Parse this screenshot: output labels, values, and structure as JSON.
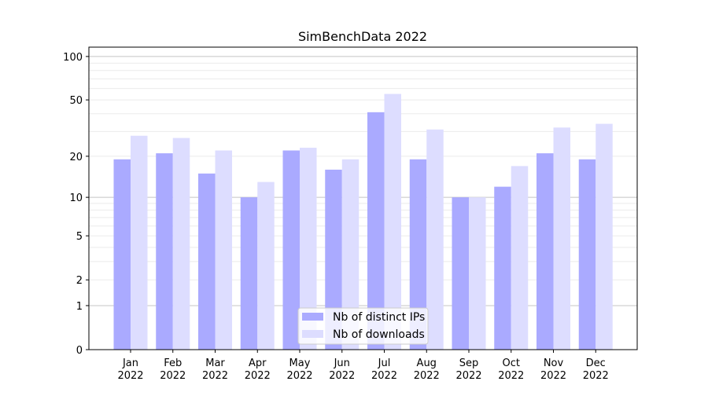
{
  "chart_data": {
    "type": "bar",
    "title": "SimBenchData 2022",
    "xlabel": "",
    "ylabel": "",
    "yscale": "log10(1+y)",
    "ylim": [
      0,
      116
    ],
    "yticks": [
      0,
      1,
      2,
      5,
      10,
      20,
      50,
      100
    ],
    "ytick_labels": [
      "0",
      "1",
      "2",
      "5",
      "10",
      "20",
      "50",
      "100"
    ],
    "grid": true,
    "legend_position": "bottom-center",
    "categories": [
      "Jan\n2022",
      "Feb\n2022",
      "Mar\n2022",
      "Apr\n2022",
      "May\n2022",
      "Jun\n2022",
      "Jul\n2022",
      "Aug\n2022",
      "Sep\n2022",
      "Oct\n2022",
      "Nov\n2022",
      "Dec\n2022"
    ],
    "series": [
      {
        "name": "Nb of distinct IPs",
        "color": "#aaaaff",
        "values": [
          19,
          21,
          15,
          10,
          22,
          16,
          41,
          19,
          10,
          12,
          21,
          19
        ]
      },
      {
        "name": "Nb of downloads",
        "color": "#ddddff",
        "values": [
          28,
          27,
          22,
          13,
          23,
          19,
          55,
          31,
          10,
          17,
          32,
          34
        ]
      }
    ]
  }
}
